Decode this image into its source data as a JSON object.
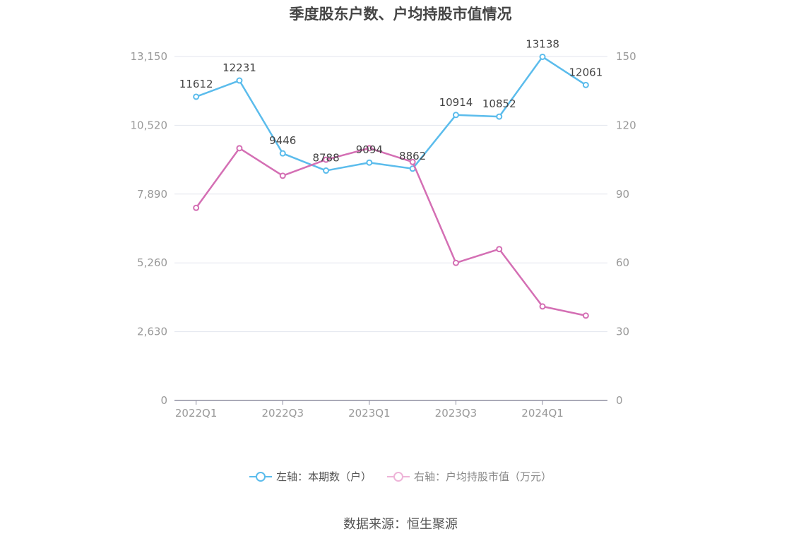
{
  "chart_data": {
    "type": "line",
    "title": "季度股东户数、户均持股市值情况",
    "categories": [
      "2022Q1",
      "2022Q2",
      "2022Q3",
      "2022Q4",
      "2023Q1",
      "2023Q2",
      "2023Q3",
      "2023Q4",
      "2024Q1",
      "2024Q2"
    ],
    "x_tick_labels": [
      "2022Q1",
      "2022Q3",
      "2023Q1",
      "2023Q3",
      "2024Q1"
    ],
    "left_axis": {
      "min": 0,
      "max": 13150,
      "ticks": [
        "0",
        "2,630",
        "5,260",
        "7,890",
        "10,520",
        "13,150"
      ]
    },
    "right_axis": {
      "min": 0,
      "max": 150,
      "ticks": [
        "0",
        "30",
        "60",
        "90",
        "120",
        "150"
      ]
    },
    "grid": true,
    "legend_position": "bottom",
    "series": [
      {
        "name": "左轴：本期数（户）",
        "axis": "left",
        "color": "#5bbcec",
        "values": [
          11612,
          12231,
          9446,
          8788,
          9094,
          8862,
          10914,
          10852,
          13138,
          12061
        ],
        "labels": [
          "11612",
          "12231",
          "9446",
          "8788",
          "9094",
          "8862",
          "10914",
          "10852",
          "13138",
          "12061"
        ]
      },
      {
        "name": "右轴：户均持股市值（万元）",
        "axis": "right",
        "color": "#d46fb4",
        "values": [
          84,
          110,
          98,
          105,
          110,
          104,
          60,
          66,
          41,
          37
        ]
      }
    ]
  },
  "source_text": "数据来源：恒生聚源"
}
